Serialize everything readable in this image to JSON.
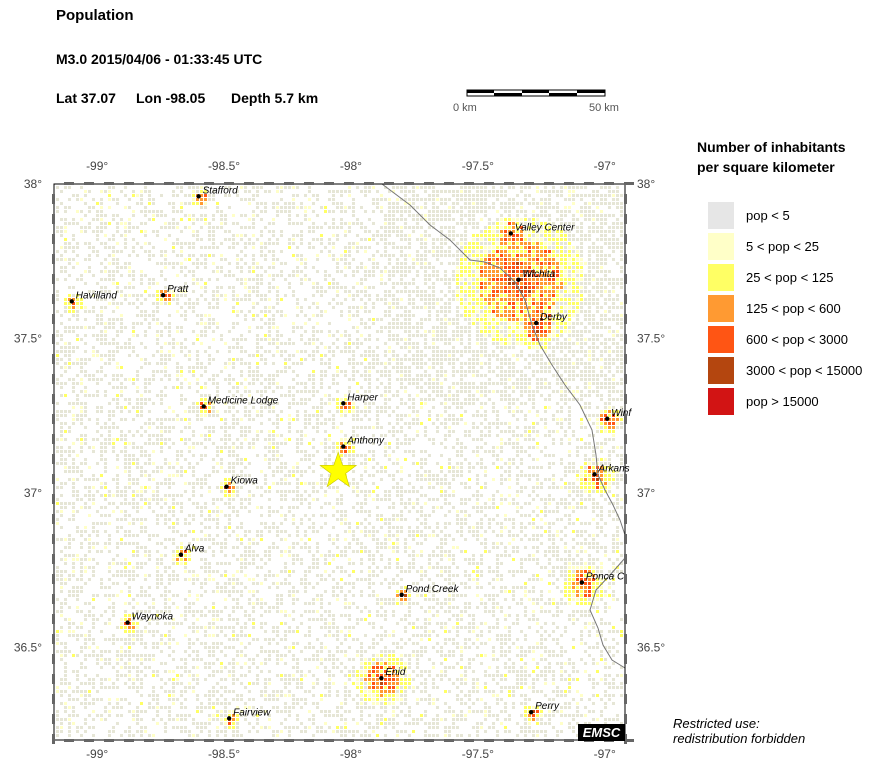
{
  "header": {
    "title": "Population",
    "event": "M3.0  2015/04/06 - 01:33:45 UTC",
    "lat": "Lat 37.07",
    "lon": "Lon -98.05",
    "depth": "Depth  5.7 km"
  },
  "scale_bar": {
    "left_label": "0 km",
    "right_label": "50 km"
  },
  "map": {
    "lon_ticks": [
      "-99°",
      "-98.5°",
      "-98°",
      "-97.5°",
      "-97°"
    ],
    "lat_ticks": [
      "38°",
      "37.5°",
      "37°",
      "36.5°"
    ],
    "epicenter": {
      "lat": 37.07,
      "lon": -98.05,
      "color": "#ffff00"
    },
    "cities": [
      {
        "name": "Stafford",
        "lon": -98.6,
        "lat": 37.96
      },
      {
        "name": "Havilland",
        "lon": -99.1,
        "lat": 37.62
      },
      {
        "name": "Pratt",
        "lon": -98.74,
        "lat": 37.64
      },
      {
        "name": "Valley Center",
        "lon": -97.37,
        "lat": 37.84
      },
      {
        "name": "Wichita",
        "lon": -97.34,
        "lat": 37.69
      },
      {
        "name": "Derby",
        "lon": -97.27,
        "lat": 37.55
      },
      {
        "name": "Medicine Lodge",
        "lon": -98.58,
        "lat": 37.28
      },
      {
        "name": "Harper",
        "lon": -98.03,
        "lat": 37.29
      },
      {
        "name": "Anthony",
        "lon": -98.03,
        "lat": 37.15
      },
      {
        "name": "Winf",
        "lon": -96.99,
        "lat": 37.24
      },
      {
        "name": "Arkans",
        "lon": -97.04,
        "lat": 37.06
      },
      {
        "name": "Kiowa",
        "lon": -98.49,
        "lat": 37.02
      },
      {
        "name": "Alva",
        "lon": -98.67,
        "lat": 36.8
      },
      {
        "name": "Pond Creek",
        "lon": -97.8,
        "lat": 36.67
      },
      {
        "name": "Ponca C",
        "lon": -97.09,
        "lat": 36.71
      },
      {
        "name": "Waynoka",
        "lon": -98.88,
        "lat": 36.58
      },
      {
        "name": "Enid",
        "lon": -97.88,
        "lat": 36.4
      },
      {
        "name": "Fairview",
        "lon": -98.48,
        "lat": 36.27
      },
      {
        "name": "Perry",
        "lon": -97.29,
        "lat": 36.29
      }
    ]
  },
  "legend": {
    "title_line1": "Number of inhabitants",
    "title_line2": "per square kilometer",
    "items": [
      {
        "label": "pop < 5",
        "color": "#e6e6e6"
      },
      {
        "label": "5 < pop < 25",
        "color": "#ffffc8"
      },
      {
        "label": "25 < pop < 125",
        "color": "#ffff64"
      },
      {
        "label": "125 < pop < 600",
        "color": "#ff9a32"
      },
      {
        "label": "600 < pop < 3000",
        "color": "#ff5514"
      },
      {
        "label": "3000 < pop < 15000",
        "color": "#b4460f"
      },
      {
        "label": "pop > 15000",
        "color": "#d21414"
      }
    ]
  },
  "footer": {
    "logo": "EMSC",
    "restricted_line1": "Restricted use:",
    "restricted_line2": "redistribution forbidden"
  }
}
